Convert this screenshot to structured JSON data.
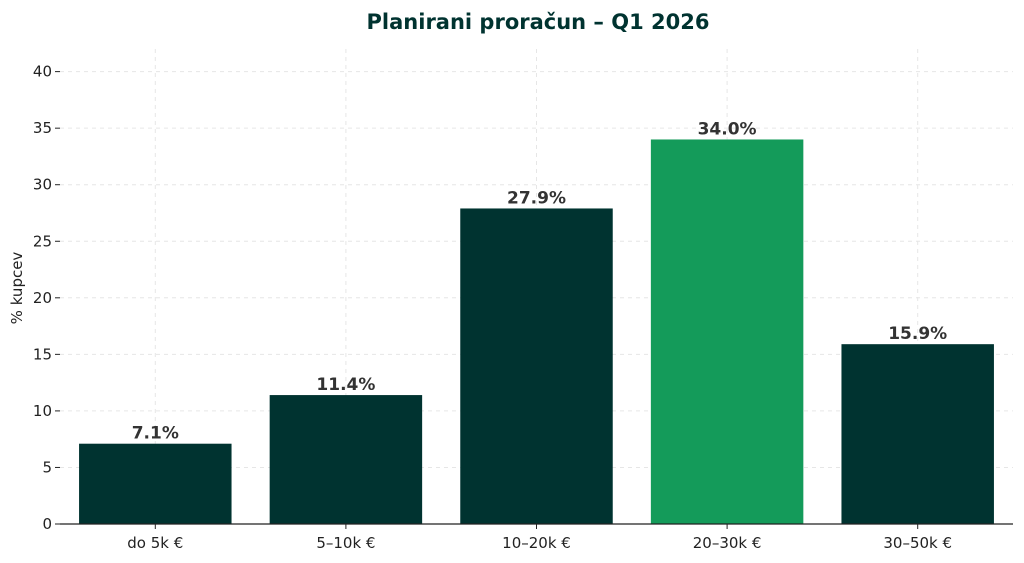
{
  "chart_data": {
    "type": "bar",
    "title": "Planirani proračun – Q1 2026",
    "xlabel": "",
    "ylabel": "% kupcev",
    "categories": [
      "do 5k €",
      "5–10k €",
      "10–20k €",
      "20–30k €",
      "30–50k €"
    ],
    "values": [
      7.1,
      11.4,
      27.9,
      34.0,
      15.9
    ],
    "data_labels": [
      "7.1%",
      "11.4%",
      "27.9%",
      "34.0%",
      "15.9%"
    ],
    "ylim": [
      0,
      42
    ],
    "yticks": [
      0,
      5,
      10,
      15,
      20,
      25,
      30,
      35,
      40
    ],
    "grid": true,
    "highlight_index": 3,
    "colors": {
      "bar": "#003330",
      "highlight": "#149b5a",
      "title": "#003330",
      "grid": "#e6e6e6",
      "axis": "#222222"
    }
  }
}
